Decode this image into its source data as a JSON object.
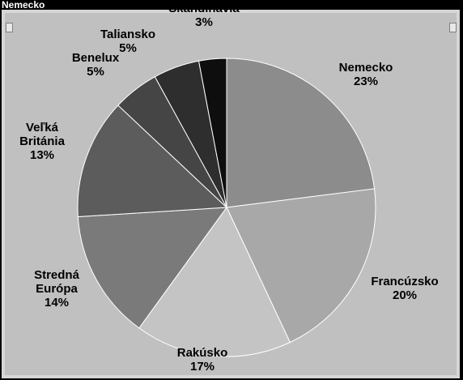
{
  "window": {
    "title": "Nemecko"
  },
  "colors": {
    "background": "#000000",
    "plot_area": "#c0c0c0",
    "frame_border": "#d6d6d6",
    "slice_edge": "#ffffff",
    "label_text": "#000000"
  },
  "chart_data": {
    "type": "pie",
    "title": "",
    "start_angle_deg": 0,
    "direction": "clockwise",
    "slices": [
      {
        "label": "Nemecko",
        "label_lines": [
          "Nemecko"
        ],
        "value": 23,
        "display": "23%",
        "color": "#8c8c8c"
      },
      {
        "label": "Francúzsko",
        "label_lines": [
          "Francúzsko"
        ],
        "value": 20,
        "display": "20%",
        "color": "#a8a8a8"
      },
      {
        "label": "Rakúsko",
        "label_lines": [
          "Rakúsko"
        ],
        "value": 17,
        "display": "17%",
        "color": "#c4c4c4"
      },
      {
        "label": "Stredná Európa",
        "label_lines": [
          "Stredná",
          "Európa"
        ],
        "value": 14,
        "display": "14%",
        "color": "#7a7a7a"
      },
      {
        "label": "Veľká Británia",
        "label_lines": [
          "Veľká",
          "Británia"
        ],
        "value": 13,
        "display": "13%",
        "color": "#5c5c5c"
      },
      {
        "label": "Benelux",
        "label_lines": [
          "Benelux"
        ],
        "value": 5,
        "display": "5%",
        "color": "#454545"
      },
      {
        "label": "Taliansko",
        "label_lines": [
          "Taliansko"
        ],
        "value": 5,
        "display": "5%",
        "color": "#2e2e2e"
      },
      {
        "label": "Škandinávia",
        "label_lines": [
          "Škandinávia"
        ],
        "value": 3,
        "display": "3%",
        "color": "#0e0e0e"
      }
    ]
  }
}
